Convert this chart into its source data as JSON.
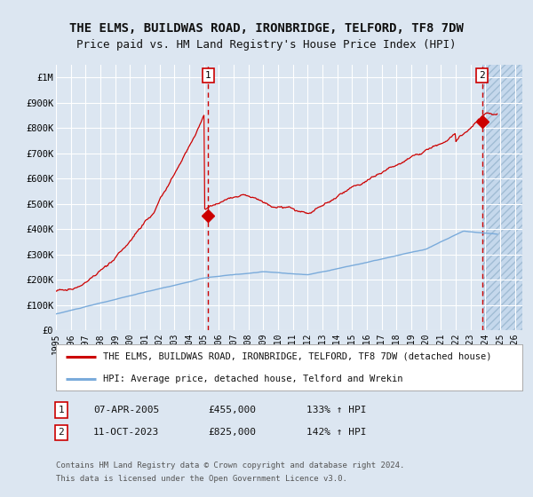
{
  "title": "THE ELMS, BUILDWAS ROAD, IRONBRIDGE, TELFORD, TF8 7DW",
  "subtitle": "Price paid vs. HM Land Registry's House Price Index (HPI)",
  "bg_color": "#dce6f1",
  "plot_bg_color": "#dce6f1",
  "red_line_color": "#cc0000",
  "blue_line_color": "#7aabdb",
  "grid_color": "#ffffff",
  "dashed_line_color": "#cc0000",
  "marker_color": "#cc0000",
  "ylim": [
    0,
    1050000
  ],
  "xlim_start": 1995.0,
  "xlim_end": 2026.5,
  "yticks": [
    0,
    100000,
    200000,
    300000,
    400000,
    500000,
    600000,
    700000,
    800000,
    900000,
    1000000
  ],
  "ytick_labels": [
    "£0",
    "£100K",
    "£200K",
    "£300K",
    "£400K",
    "£500K",
    "£600K",
    "£700K",
    "£800K",
    "£900K",
    "£1M"
  ],
  "xticks": [
    1995,
    1996,
    1997,
    1998,
    1999,
    2000,
    2001,
    2002,
    2003,
    2004,
    2005,
    2006,
    2007,
    2008,
    2009,
    2010,
    2011,
    2012,
    2013,
    2014,
    2015,
    2016,
    2017,
    2018,
    2019,
    2020,
    2021,
    2022,
    2023,
    2024,
    2025,
    2026
  ],
  "vline1_x": 2005.27,
  "vline2_x": 2023.79,
  "point1_x": 2005.27,
  "point1_y": 455000,
  "point2_x": 2023.79,
  "point2_y": 825000,
  "label1": "1",
  "label2": "2",
  "legend_red": "THE ELMS, BUILDWAS ROAD, IRONBRIDGE, TELFORD, TF8 7DW (detached house)",
  "legend_blue": "HPI: Average price, detached house, Telford and Wrekin",
  "table_row1_num": "1",
  "table_row1_date": "07-APR-2005",
  "table_row1_price": "£455,000",
  "table_row1_hpi": "133% ↑ HPI",
  "table_row2_num": "2",
  "table_row2_date": "11-OCT-2023",
  "table_row2_price": "£825,000",
  "table_row2_hpi": "142% ↑ HPI",
  "footnote1": "Contains HM Land Registry data © Crown copyright and database right 2024.",
  "footnote2": "This data is licensed under the Open Government Licence v3.0.",
  "title_fontsize": 10,
  "subtitle_fontsize": 9,
  "tick_fontsize": 7.5,
  "legend_fontsize": 7.5,
  "table_fontsize": 8,
  "footnote_fontsize": 6.5
}
